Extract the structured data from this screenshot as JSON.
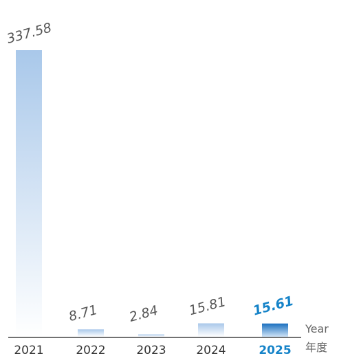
{
  "chart_data": {
    "type": "bar",
    "categories": [
      "2021",
      "2022",
      "2023",
      "2024",
      "2025"
    ],
    "values": [
      337.58,
      8.71,
      2.84,
      15.81,
      15.61
    ],
    "value_labels": [
      "337.58",
      "8.71",
      "2.84",
      "15.81",
      "15.61"
    ],
    "highlight_index": 4,
    "xlabel_en": "Year",
    "xlabel_zh": "年度",
    "colors": {
      "bar_top": "#a9c8ea",
      "bar_bottom": "#ffffff",
      "highlight_top": "#1a6fbf",
      "highlight_text": "#1583c8",
      "axis": "#444444",
      "label": "#555555"
    }
  }
}
